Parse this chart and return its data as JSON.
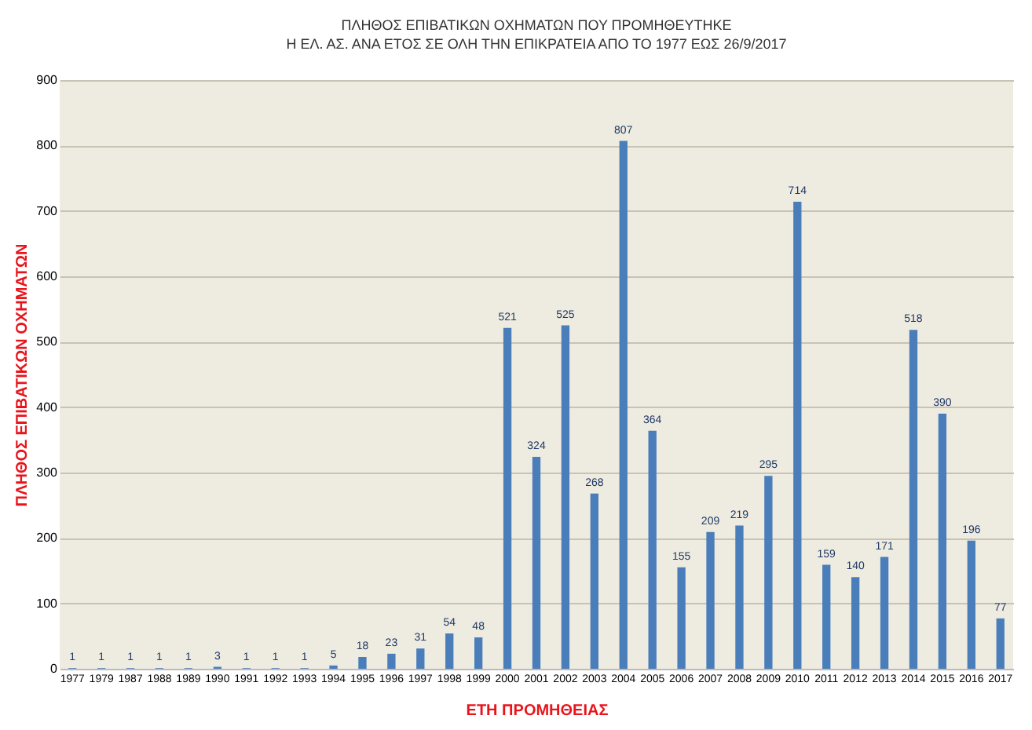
{
  "chart_data": {
    "type": "bar",
    "title": "ΠΛΗΘΟΣ ΕΠΙΒΑΤΙΚΩΝ ΟΧΗΜΑΤΩΝ ΠΟΥ ΠΡΟΜΗΘΕΥΤΗΚΕ",
    "subtitle": "Η ΕΛ. ΑΣ. ΑΝΑ ΕΤΟΣ ΣΕ ΟΛΗ ΤΗΝ ΕΠΙΚΡΑΤΕΙΑ ΑΠΟ ΤΟ 1977 ΕΩΣ 26/9/2017",
    "xlabel": "ΕΤΗ ΠΡΟΜΗΘΕΙΑΣ",
    "ylabel": "ΠΛΗΘΟΣ ΕΠΙΒΑΤΙΚΩΝ ΟΧΗΜΑΤΩΝ",
    "categories": [
      "1977",
      "1979",
      "1987",
      "1988",
      "1989",
      "1990",
      "1991",
      "1992",
      "1993",
      "1994",
      "1995",
      "1996",
      "1997",
      "1998",
      "1999",
      "2000",
      "2001",
      "2002",
      "2003",
      "2004",
      "2005",
      "2006",
      "2007",
      "2008",
      "2009",
      "2010",
      "2011",
      "2012",
      "2013",
      "2014",
      "2015",
      "2016",
      "2017"
    ],
    "values": [
      1,
      1,
      1,
      1,
      1,
      3,
      1,
      1,
      1,
      5,
      18,
      23,
      31,
      54,
      48,
      521,
      324,
      525,
      268,
      807,
      364,
      155,
      209,
      219,
      295,
      714,
      159,
      140,
      171,
      518,
      390,
      196,
      77
    ],
    "color": "#4a7ebb",
    "ylim": [
      0,
      900
    ],
    "yticks": [
      0,
      100,
      200,
      300,
      400,
      500,
      600,
      700,
      800,
      900
    ],
    "grid": "y",
    "data_labels": true
  }
}
